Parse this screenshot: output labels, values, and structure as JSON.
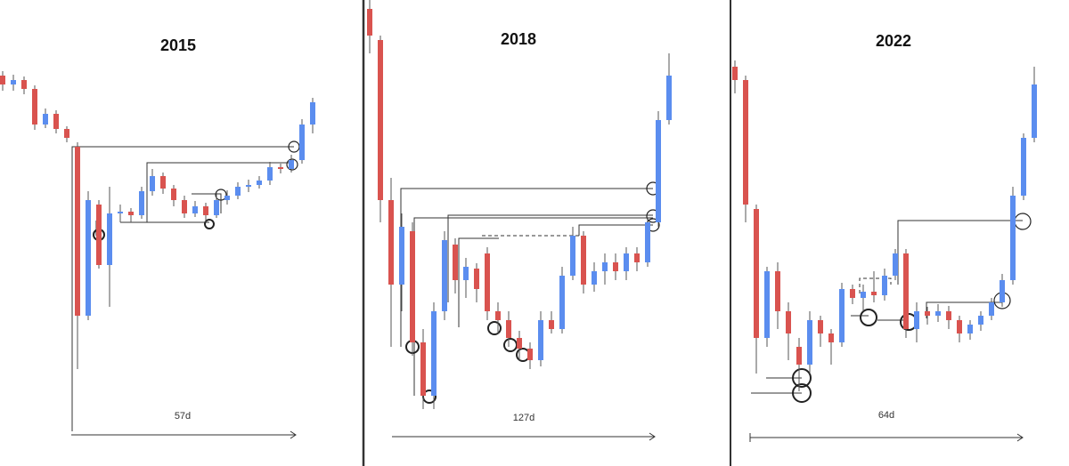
{
  "chart_data": [
    {
      "type": "candlestick",
      "title": "2015",
      "annotation": "57d",
      "up_color": "#5b8def",
      "down_color": "#d9534f",
      "ylim": [
        0,
        500
      ],
      "open": [
        415,
        405,
        410,
        400,
        360,
        372,
        355,
        335,
        145,
        270,
        202,
        260,
        262,
        258,
        285,
        302,
        288,
        275,
        260,
        268,
        258,
        275,
        280,
        290,
        292,
        297,
        312,
        310,
        320,
        360
      ],
      "close": [
        405,
        410,
        400,
        360,
        372,
        355,
        345,
        145,
        275,
        202,
        260,
        262,
        258,
        285,
        302,
        288,
        275,
        260,
        268,
        258,
        275,
        280,
        290,
        292,
        297,
        312,
        310,
        320,
        360,
        385
      ],
      "high": [
        420,
        416,
        414,
        404,
        378,
        376,
        358,
        340,
        285,
        275,
        290,
        270,
        266,
        290,
        310,
        306,
        292,
        280,
        274,
        272,
        284,
        286,
        295,
        298,
        302,
        318,
        316,
        326,
        366,
        390
      ],
      "low": [
        398,
        398,
        394,
        354,
        356,
        350,
        340,
        85,
        140,
        198,
        155,
        250,
        250,
        254,
        280,
        282,
        268,
        255,
        256,
        250,
        255,
        270,
        276,
        284,
        288,
        292,
        305,
        306,
        316,
        350
      ]
    },
    {
      "type": "candlestick",
      "title": "2018",
      "annotation": "127d",
      "up_color": "#5b8def",
      "down_color": "#d9534f",
      "ylim": [
        0,
        500
      ],
      "open": [
        490,
        455,
        275,
        180,
        240,
        115,
        55,
        150,
        225,
        185,
        198,
        215,
        150,
        140,
        120,
        108,
        95,
        140,
        130,
        190,
        235,
        180,
        195,
        205,
        195,
        215,
        205,
        250,
        365
      ],
      "close": [
        460,
        275,
        180,
        245,
        115,
        55,
        150,
        230,
        185,
        200,
        175,
        150,
        140,
        120,
        108,
        95,
        140,
        130,
        190,
        235,
        180,
        195,
        205,
        195,
        215,
        205,
        250,
        365,
        415
      ],
      "high": [
        500,
        460,
        300,
        260,
        250,
        130,
        160,
        240,
        232,
        210,
        204,
        222,
        160,
        150,
        128,
        115,
        150,
        150,
        200,
        245,
        240,
        205,
        215,
        215,
        222,
        222,
        255,
        375,
        440
      ],
      "low": [
        440,
        250,
        110,
        150,
        100,
        40,
        40,
        140,
        170,
        165,
        160,
        140,
        125,
        110,
        95,
        85,
        88,
        125,
        125,
        185,
        170,
        172,
        180,
        185,
        185,
        195,
        200,
        245,
        360
      ]
    },
    {
      "type": "candlestick",
      "title": "2022",
      "annotation": "64d",
      "up_color": "#5b8def",
      "down_color": "#d9534f",
      "ylim": [
        0,
        500
      ],
      "open": [
        425,
        410,
        265,
        120,
        195,
        150,
        110,
        90,
        140,
        125,
        115,
        175,
        165,
        172,
        168,
        190,
        215,
        130,
        150,
        145,
        150,
        140,
        125,
        135,
        145,
        160,
        185,
        280,
        345
      ],
      "close": [
        410,
        270,
        120,
        195,
        150,
        125,
        90,
        140,
        125,
        115,
        175,
        165,
        172,
        168,
        190,
        215,
        130,
        150,
        145,
        150,
        140,
        125,
        135,
        145,
        160,
        185,
        280,
        345,
        405
      ],
      "high": [
        432,
        415,
        270,
        200,
        205,
        160,
        120,
        150,
        145,
        130,
        182,
        180,
        180,
        195,
        198,
        220,
        220,
        160,
        155,
        158,
        156,
        145,
        140,
        150,
        165,
        192,
        290,
        350,
        425
      ],
      "low": [
        395,
        250,
        80,
        110,
        130,
        95,
        60,
        80,
        110,
        90,
        110,
        158,
        150,
        160,
        162,
        185,
        120,
        115,
        135,
        138,
        130,
        115,
        118,
        128,
        140,
        155,
        180,
        275,
        340
      ]
    }
  ]
}
